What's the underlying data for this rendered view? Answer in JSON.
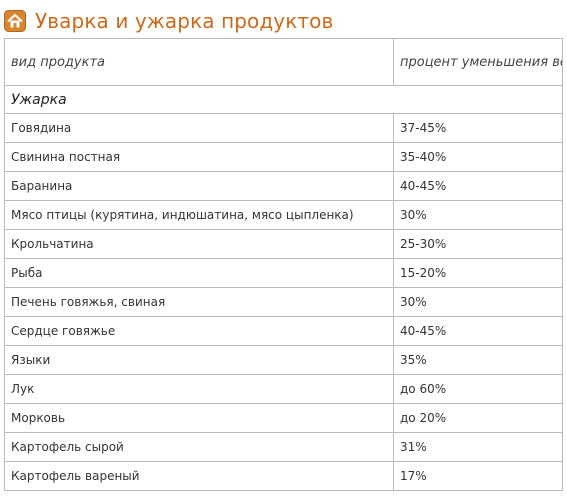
{
  "page": {
    "title": "Уварка и ужарка продуктов",
    "icon": "home-icon",
    "accent_color": "#cc6a1b"
  },
  "table": {
    "headers": {
      "product": "вид продукта",
      "percent": "процент уменьшения веса"
    },
    "section_label": "Ужарка",
    "rows": [
      {
        "product": "Говядина",
        "percent": "37-45%"
      },
      {
        "product": "Свинина постная",
        "percent": "35-40%"
      },
      {
        "product": "Баранина",
        "percent": "40-45%"
      },
      {
        "product": "Мясо птицы (курятина, индюшатина, мясо цыпленка)",
        "percent": "30%"
      },
      {
        "product": "Крольчатина",
        "percent": "25-30%"
      },
      {
        "product": "Рыба",
        "percent": "15-20%"
      },
      {
        "product": "Печень говяжья, свиная",
        "percent": "30%"
      },
      {
        "product": "Сердце говяжье",
        "percent": "40-45%"
      },
      {
        "product": "Языки",
        "percent": "35%"
      },
      {
        "product": "Лук",
        "percent": "до 60%"
      },
      {
        "product": "Морковь",
        "percent": "до 20%"
      },
      {
        "product": "Картофель сырой",
        "percent": "31%"
      },
      {
        "product": "Картофель вареный",
        "percent": "17%"
      }
    ]
  }
}
